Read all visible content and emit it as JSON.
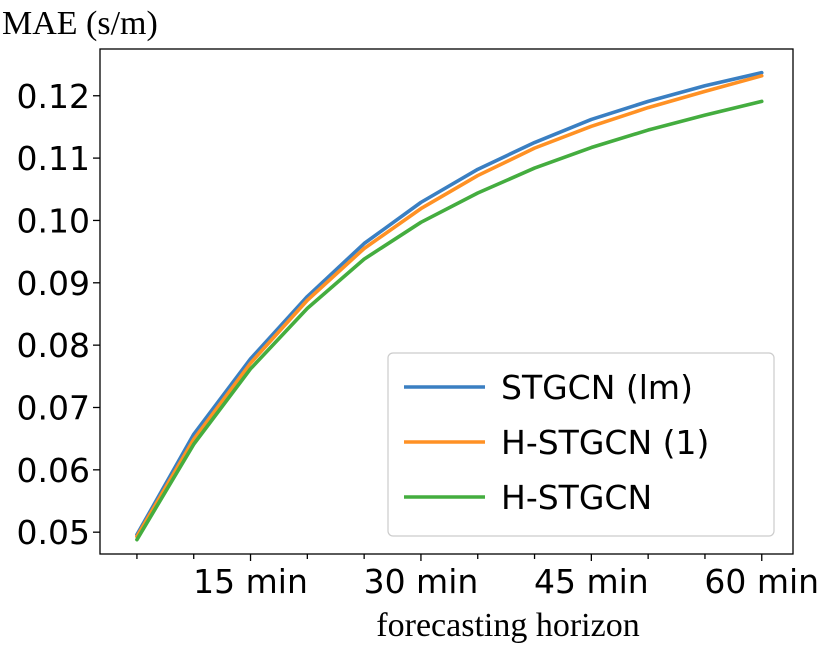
{
  "chart_data": {
    "type": "line",
    "title": "",
    "ylabel": "MAE (s/m)",
    "xlabel": "forecasting horizon",
    "x": [
      1,
      2,
      3,
      4,
      5,
      6,
      7,
      8,
      9,
      10,
      11,
      12
    ],
    "xlim": [
      0.35,
      12.55
    ],
    "ylim": [
      0.0465,
      0.1275
    ],
    "x_ticks": [
      {
        "value": 3,
        "label": "15 min"
      },
      {
        "value": 6,
        "label": "30 min"
      },
      {
        "value": 9,
        "label": "45 min"
      },
      {
        "value": 12,
        "label": "60 min"
      }
    ],
    "x_minor_ticks": [
      1,
      2,
      4,
      5,
      7,
      8,
      10,
      11
    ],
    "y_ticks": [
      {
        "value": 0.05,
        "label": "0.05"
      },
      {
        "value": 0.06,
        "label": "0.06"
      },
      {
        "value": 0.07,
        "label": "0.07"
      },
      {
        "value": 0.08,
        "label": "0.08"
      },
      {
        "value": 0.09,
        "label": "0.09"
      },
      {
        "value": 0.1,
        "label": "0.10"
      },
      {
        "value": 0.11,
        "label": "0.11"
      },
      {
        "value": 0.12,
        "label": "0.12"
      }
    ],
    "grid": false,
    "legend_position": "bottom-right",
    "series": [
      {
        "name": "STGCN (lm)",
        "color": "#3a7fc2",
        "values": [
          0.0496,
          0.0657,
          0.0778,
          0.0878,
          0.0963,
          0.1029,
          0.1082,
          0.1125,
          0.1162,
          0.1191,
          0.1216,
          0.1237
        ]
      },
      {
        "name": "H-STGCN (1)",
        "color": "#ff9124",
        "values": [
          0.0493,
          0.0649,
          0.0771,
          0.0872,
          0.0955,
          0.1019,
          0.1072,
          0.1116,
          0.1151,
          0.1181,
          0.1207,
          0.1232
        ]
      },
      {
        "name": "H-STGCN",
        "color": "#44ad3f",
        "values": [
          0.0488,
          0.0641,
          0.0762,
          0.0859,
          0.0938,
          0.0997,
          0.1044,
          0.1084,
          0.1117,
          0.1145,
          0.1169,
          0.1191
        ]
      }
    ]
  }
}
